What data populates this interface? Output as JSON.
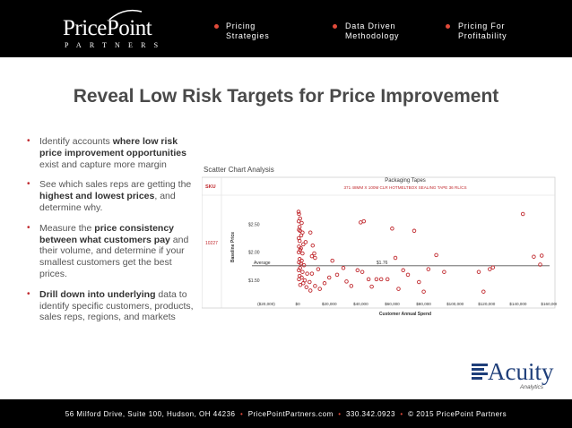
{
  "header": {
    "logo_main": "PricePoint",
    "logo_sub": "PARTNERS",
    "nav": [
      {
        "line1": "Pricing",
        "line2": "Strategies"
      },
      {
        "line1": "Data Driven",
        "line2": "Methodology"
      },
      {
        "line1": "Pricing For",
        "line2": "Profitability"
      }
    ]
  },
  "title": "Reveal Low Risk Targets for Price Improvement",
  "bullets": [
    {
      "parts": [
        "Identify accounts ",
        "where low risk price improvement opportunities",
        " exist and capture more margin"
      ]
    },
    {
      "parts": [
        "See which sales reps are getting the ",
        "highest and lowest prices",
        ", and determine why."
      ]
    },
    {
      "parts": [
        "Measure the ",
        "price consistency between what customers pay",
        " and their volume, and determine if your smallest customers get the best prices."
      ]
    },
    {
      "parts": [
        "",
        "Drill down into underlying",
        " data to identify specific customers, products, sales reps, regions, and markets"
      ]
    }
  ],
  "chart_data": {
    "type": "scatter",
    "panel_title": "Scatter Chart Analysis",
    "title": "Packaging Tapes",
    "subtitle": "371 48MM X 100M CLR HOTMELTBOX SEALING TAPE 36 RL/CS",
    "sku_label": "SKU",
    "sku_value": "10227",
    "xlabel": "Customer Annual Spend",
    "ylabel": "Baseline Price",
    "x_ticks": [
      "($20,000)",
      "$0",
      "$20,000",
      "$40,000",
      "$60,000",
      "$80,000",
      "$100,000",
      "$120,000",
      "$140,000",
      "$160,000"
    ],
    "y_ticks": [
      "$2.50",
      "$2.00",
      "$1.50"
    ],
    "xlim": [
      -20000,
      160000
    ],
    "ylim": [
      1.2,
      2.95
    ],
    "average_label": "Average",
    "average_value_label": "$1.76",
    "average": 1.76,
    "points": [
      [
        500,
        2.72
      ],
      [
        800,
        2.68
      ],
      [
        1500,
        2.6
      ],
      [
        600,
        2.55
      ],
      [
        2500,
        2.52
      ],
      [
        1200,
        2.45
      ],
      [
        800,
        2.4
      ],
      [
        1500,
        2.38
      ],
      [
        3000,
        2.35
      ],
      [
        2200,
        2.3
      ],
      [
        600,
        2.25
      ],
      [
        1200,
        2.2
      ],
      [
        5000,
        2.18
      ],
      [
        3500,
        2.14
      ],
      [
        800,
        2.1
      ],
      [
        2000,
        2.07
      ],
      [
        1500,
        2.04
      ],
      [
        600,
        2.0
      ],
      [
        3000,
        1.98
      ],
      [
        8000,
        2.35
      ],
      [
        9500,
        2.12
      ],
      [
        10500,
        1.98
      ],
      [
        9000,
        1.93
      ],
      [
        11000,
        1.9
      ],
      [
        1200,
        1.88
      ],
      [
        2500,
        1.85
      ],
      [
        800,
        1.82
      ],
      [
        2000,
        1.8
      ],
      [
        4000,
        1.77
      ],
      [
        1500,
        1.72
      ],
      [
        700,
        1.68
      ],
      [
        3000,
        1.65
      ],
      [
        6000,
        1.62
      ],
      [
        1200,
        1.58
      ],
      [
        2500,
        1.55
      ],
      [
        9000,
        1.62
      ],
      [
        13000,
        1.7
      ],
      [
        800,
        1.52
      ],
      [
        4500,
        1.5
      ],
      [
        7500,
        1.47
      ],
      [
        11000,
        1.4
      ],
      [
        3500,
        1.45
      ],
      [
        1600,
        1.42
      ],
      [
        5500,
        1.38
      ],
      [
        8000,
        1.32
      ],
      [
        14000,
        1.35
      ],
      [
        17000,
        1.45
      ],
      [
        20000,
        1.55
      ],
      [
        22000,
        1.85
      ],
      [
        25000,
        1.6
      ],
      [
        29000,
        1.72
      ],
      [
        31000,
        1.48
      ],
      [
        34000,
        1.4
      ],
      [
        38000,
        1.68
      ],
      [
        40000,
        2.53
      ],
      [
        41000,
        1.65
      ],
      [
        42000,
        2.55
      ],
      [
        45000,
        1.52
      ],
      [
        47000,
        1.39
      ],
      [
        50000,
        1.52
      ],
      [
        53000,
        1.52
      ],
      [
        57000,
        1.52
      ],
      [
        60000,
        2.42
      ],
      [
        62000,
        1.9
      ],
      [
        64000,
        1.35
      ],
      [
        67000,
        1.68
      ],
      [
        70000,
        1.6
      ],
      [
        74000,
        2.38
      ],
      [
        77000,
        1.47
      ],
      [
        80000,
        1.3
      ],
      [
        83000,
        1.7
      ],
      [
        88000,
        1.95
      ],
      [
        93000,
        1.65
      ],
      [
        115000,
        1.65
      ],
      [
        118000,
        1.3
      ],
      [
        122000,
        1.7
      ],
      [
        124000,
        1.73
      ],
      [
        143000,
        2.68
      ],
      [
        150000,
        1.92
      ],
      [
        155000,
        1.94
      ],
      [
        154000,
        1.78
      ]
    ]
  },
  "footer": {
    "address": "56 Milford Drive, Suite 100, Hudson, OH 44236",
    "website": "PricePointPartners.com",
    "phone": "330.342.0923",
    "copyright": "© 2015 PricePoint Partners"
  },
  "brand": {
    "name": "Acuity",
    "sub": "Analytics"
  },
  "colors": {
    "header_bg": "#000000",
    "accent_dot": "#e04a3a",
    "point_color": "#c0282d",
    "acuity_blue": "#1f3f7a"
  }
}
